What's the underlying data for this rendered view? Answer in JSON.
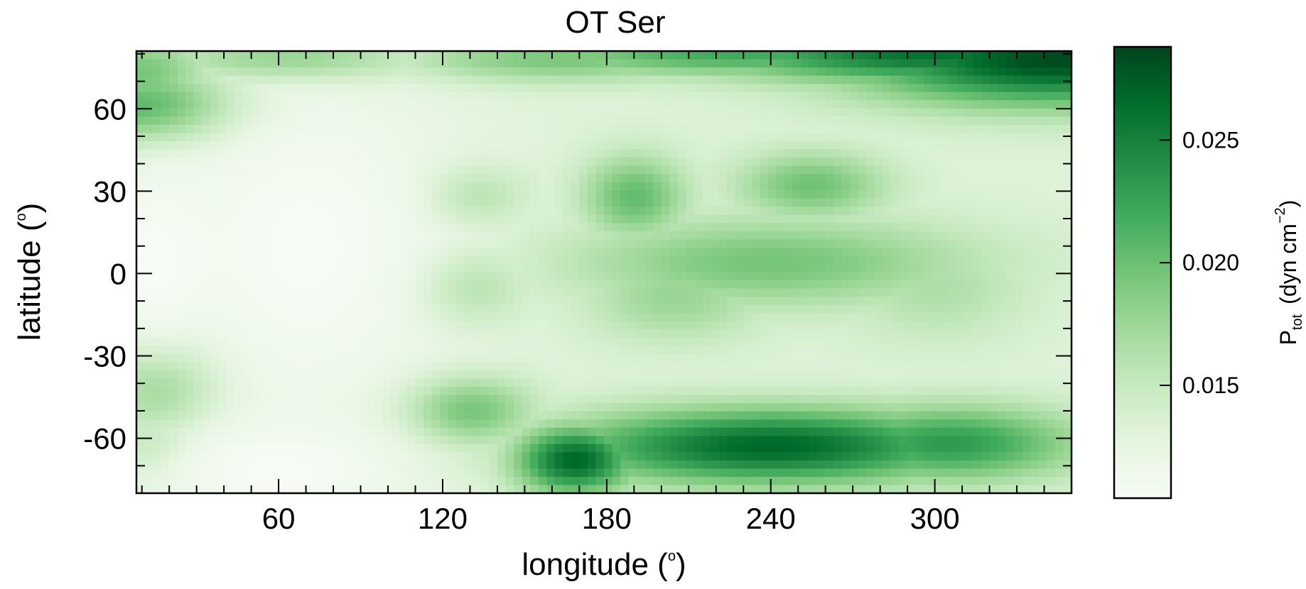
{
  "chart_data": {
    "type": "heatmap",
    "title": "OT Ser",
    "xlabel": {
      "text": "longitude (",
      "sup": "o",
      "close": ")"
    },
    "ylabel": {
      "text": "latitude (",
      "sup": "o",
      "close": ")"
    },
    "xlim": [
      8,
      350
    ],
    "ylim": [
      -80,
      81
    ],
    "x_ticks": [
      60,
      120,
      180,
      240,
      300
    ],
    "x_tick_labels": [
      "60",
      "120",
      "180",
      "240",
      "300"
    ],
    "y_ticks": [
      60,
      30,
      0,
      -30,
      -60
    ],
    "y_tick_labels": [
      "60",
      "30",
      "0",
      "-30",
      "-60"
    ],
    "colormap": "Greens",
    "color_light": "#f7fcf5",
    "color_dark": "#00441b",
    "colorbar": {
      "range": [
        0.0104,
        0.0288
      ],
      "ticks": [
        0.015,
        0.02,
        0.025
      ],
      "tick_labels": [
        "0.015",
        "0.020",
        "0.025"
      ],
      "label": {
        "main": "P",
        "sub": "tot",
        "units": "(dyn cm",
        "sup": "−2",
        "close": ")"
      }
    },
    "features": [
      {
        "lon": 345,
        "lat": 78,
        "sx": 55,
        "sy": 12,
        "v": 0.0285
      },
      {
        "lon": 300,
        "lat": 80,
        "sx": 60,
        "sy": 8,
        "v": 0.0262
      },
      {
        "lon": 230,
        "lat": 80,
        "sx": 60,
        "sy": 6,
        "v": 0.022
      },
      {
        "lon": 160,
        "lat": 78,
        "sx": 45,
        "sy": 6,
        "v": 0.0195
      },
      {
        "lon": 15,
        "lat": 60,
        "sx": 22,
        "sy": 10,
        "v": 0.0238
      },
      {
        "lon": 12,
        "lat": 72,
        "sx": 18,
        "sy": 10,
        "v": 0.021
      },
      {
        "lon": 65,
        "lat": 78,
        "sx": 30,
        "sy": 6,
        "v": 0.021
      },
      {
        "lon": 190,
        "lat": 28,
        "sx": 14,
        "sy": 11,
        "v": 0.0205
      },
      {
        "lon": 255,
        "lat": 32,
        "sx": 20,
        "sy": 9,
        "v": 0.0198
      },
      {
        "lon": 130,
        "lat": 28,
        "sx": 14,
        "sy": 8,
        "v": 0.0175
      },
      {
        "lon": 240,
        "lat": 4,
        "sx": 55,
        "sy": 12,
        "v": 0.0195
      },
      {
        "lon": 205,
        "lat": -8,
        "sx": 24,
        "sy": 12,
        "v": 0.0178
      },
      {
        "lon": 128,
        "lat": -5,
        "sx": 15,
        "sy": 10,
        "v": 0.0178
      },
      {
        "lon": 300,
        "lat": -5,
        "sx": 25,
        "sy": 14,
        "v": 0.0165
      },
      {
        "lon": 128,
        "lat": -50,
        "sx": 17,
        "sy": 9,
        "v": 0.0212
      },
      {
        "lon": 168,
        "lat": -68,
        "sx": 16,
        "sy": 9,
        "v": 0.0272
      },
      {
        "lon": 240,
        "lat": -63,
        "sx": 55,
        "sy": 10,
        "v": 0.0268
      },
      {
        "lon": 305,
        "lat": -62,
        "sx": 35,
        "sy": 10,
        "v": 0.0232
      },
      {
        "lon": 18,
        "lat": -40,
        "sx": 15,
        "sy": 14,
        "v": 0.0205
      },
      {
        "lon": 15,
        "lat": -62,
        "sx": 12,
        "sy": 8,
        "v": 0.0175
      }
    ],
    "light_regions": [
      {
        "lon": 70,
        "lat": 10,
        "sx": 40,
        "sy": 45,
        "v": 0.0
      },
      {
        "lon": 15,
        "lat": 5,
        "sx": 15,
        "sy": 25,
        "v": 0.0
      },
      {
        "lon": 60,
        "lat": -72,
        "sx": 35,
        "sy": 14,
        "v": 0.0
      }
    ]
  }
}
